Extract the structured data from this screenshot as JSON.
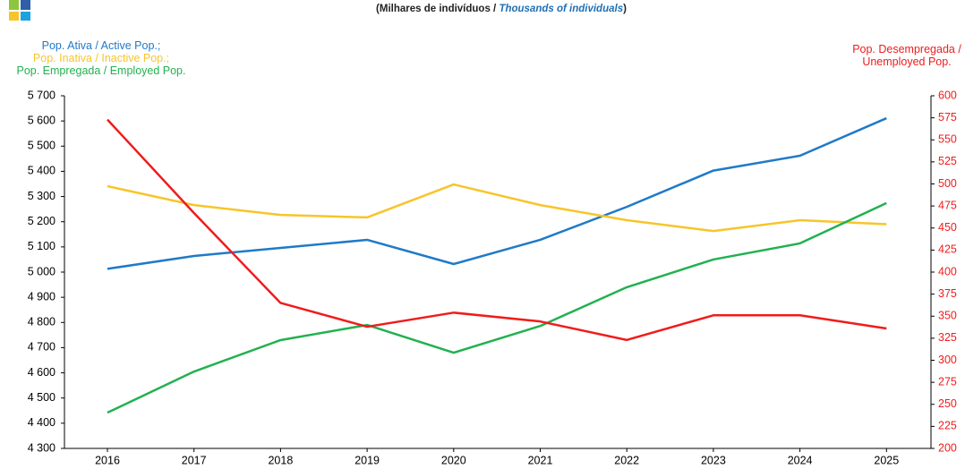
{
  "chart_data": {
    "type": "line",
    "title": {
      "pt": "(Milhares de indivíduos /",
      "en": "Thousands of individuals",
      "close": ")"
    },
    "categories": [
      "2016",
      "2017",
      "2018",
      "2019",
      "2020",
      "2021",
      "2022",
      "2023",
      "2024",
      "2025"
    ],
    "series": [
      {
        "name": "Pop. Ativa  /  Active Pop.;",
        "color": "#1f7ac8",
        "values": [
          5013,
          5064,
          5096,
          5128,
          5032,
          5128,
          5259,
          5403,
          5462,
          5611
        ]
      },
      {
        "name": "Pop. Inativa / Inactive Pop.;",
        "color": "#f7c52b",
        "values": [
          5341,
          5266,
          5227,
          5217,
          5348,
          5266,
          5206,
          5163,
          5206,
          5190
        ]
      },
      {
        "name": "Pop. Empregada / Employed Pop.",
        "color": "#22b150",
        "values": [
          4442,
          4605,
          4730,
          4790,
          4680,
          4786,
          4940,
          5050,
          5114,
          5274
        ]
      },
      {
        "name": "Pop. Desempregada / Unemployed Pop.",
        "color": "#f01c1c",
        "axis": "y2",
        "values": [
          573,
          467,
          365,
          338,
          354,
          344,
          323,
          351,
          351,
          336
        ]
      }
    ],
    "ylim": [
      4300,
      5700
    ],
    "yticks": [
      {
        "value": 4300,
        "label": "4 300"
      },
      {
        "value": 4400,
        "label": "4 400"
      },
      {
        "value": 4500,
        "label": "4 500"
      },
      {
        "value": 4600,
        "label": "4 600"
      },
      {
        "value": 4700,
        "label": "4 700"
      },
      {
        "value": 4800,
        "label": "4 800"
      },
      {
        "value": 4900,
        "label": "4 900"
      },
      {
        "value": 5000,
        "label": "5 000"
      },
      {
        "value": 5100,
        "label": "5 100"
      },
      {
        "value": 5200,
        "label": "5 200"
      },
      {
        "value": 5300,
        "label": "5 300"
      },
      {
        "value": 5400,
        "label": "5 400"
      },
      {
        "value": 5500,
        "label": "5 500"
      },
      {
        "value": 5600,
        "label": "5 600"
      },
      {
        "value": 5700,
        "label": "5 700"
      }
    ],
    "y2lim": [
      200,
      600
    ],
    "y2ticks": [
      200,
      225,
      250,
      275,
      300,
      325,
      350,
      375,
      400,
      425,
      450,
      475,
      500,
      525,
      550,
      575,
      600
    ],
    "y2color": "#f01c1c",
    "grid": false
  }
}
